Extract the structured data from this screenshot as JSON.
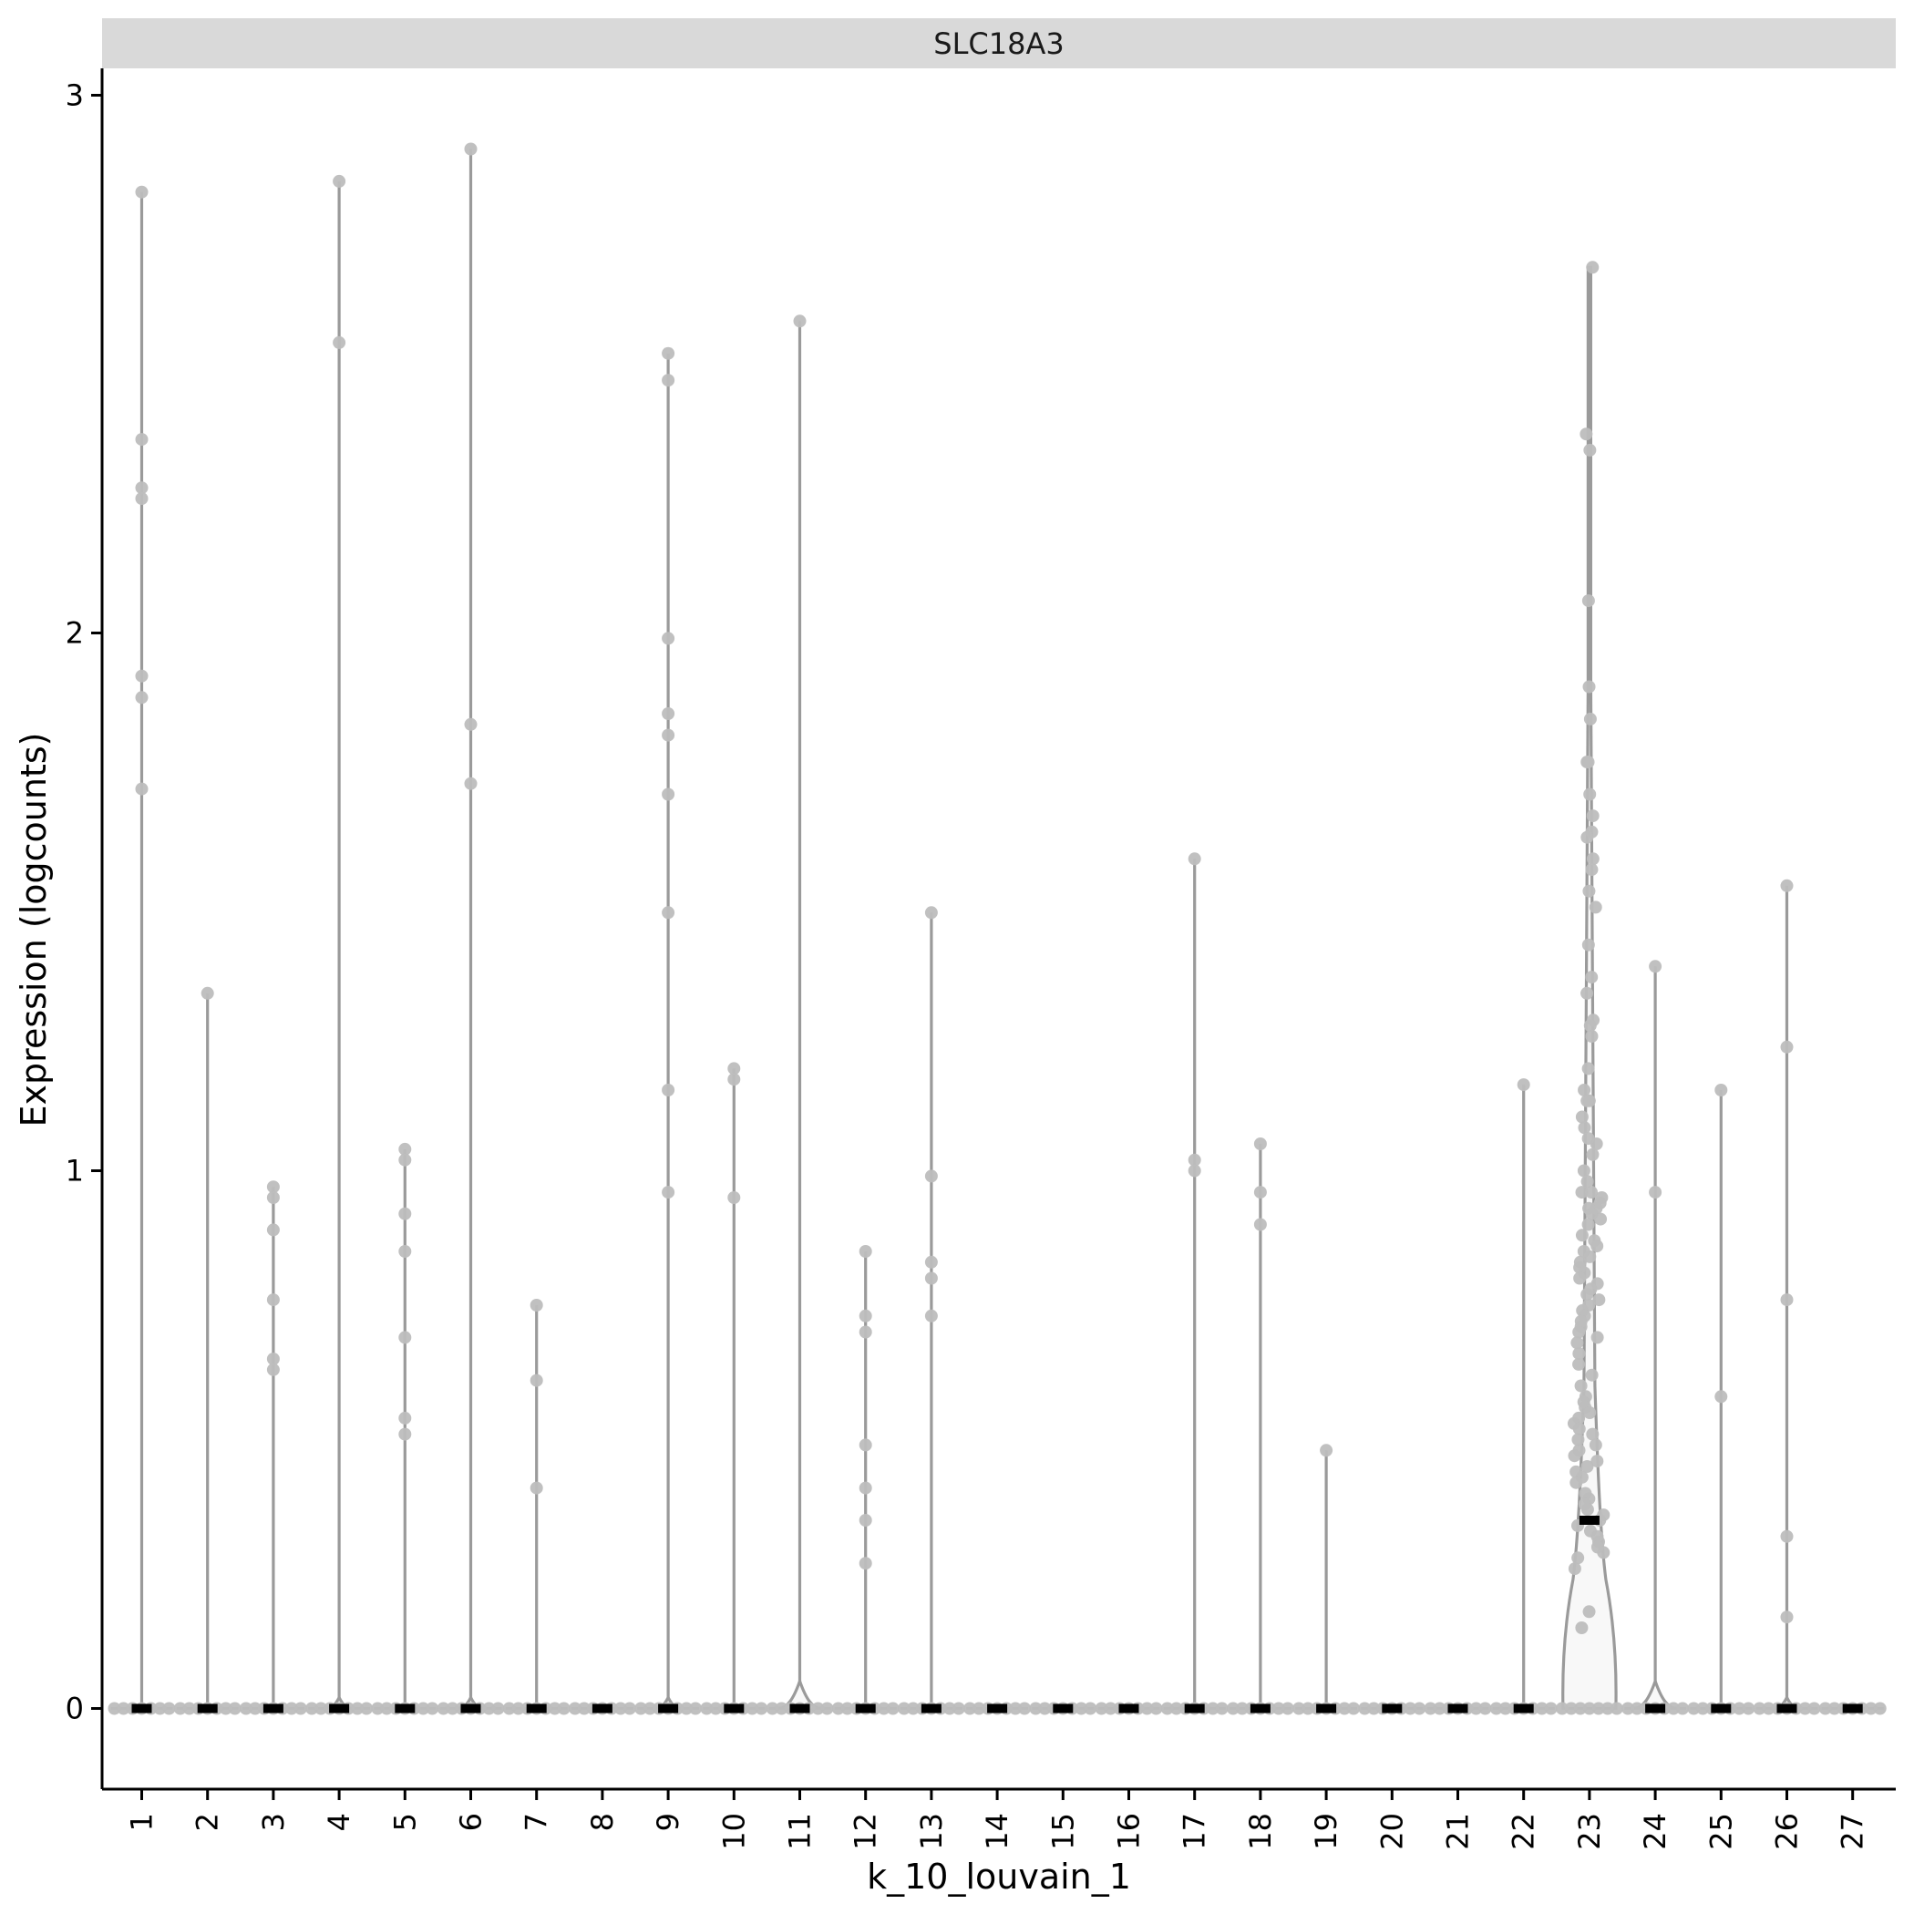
{
  "chart_data": {
    "type": "violin",
    "title": "SLC18A3",
    "xlabel": "k_10_louvain_1",
    "ylabel": "Expression (logcounts)",
    "categories": [
      "1",
      "2",
      "3",
      "4",
      "5",
      "6",
      "7",
      "8",
      "9",
      "10",
      "11",
      "12",
      "13",
      "14",
      "15",
      "16",
      "17",
      "18",
      "19",
      "20",
      "21",
      "22",
      "23",
      "24",
      "25",
      "26",
      "27"
    ],
    "ylim": [
      -0.15,
      3.05
    ],
    "yticks": [
      0,
      1,
      2,
      3
    ],
    "grid": false,
    "legend": "none",
    "colors": {
      "strip": "#d9d9d9",
      "violin_outline": "#9a9a9a",
      "violin_fill": "#f8f8f8",
      "points": "#bdbdbd",
      "median": "#000000"
    },
    "groups": [
      {
        "category": "1",
        "median": 0,
        "max": 2.82,
        "nonzero_points": [
          2.82,
          2.36,
          2.27,
          2.25,
          1.92,
          1.88,
          1.71
        ]
      },
      {
        "category": "2",
        "median": 0,
        "max": 1.33,
        "nonzero_points": [
          1.33
        ]
      },
      {
        "category": "3",
        "median": 0,
        "max": 0.97,
        "nonzero_points": [
          0.97,
          0.95,
          0.89,
          0.76,
          0.65,
          0.63
        ]
      },
      {
        "category": "4",
        "median": 0,
        "max": 2.84,
        "nonzero_points": [
          2.84,
          2.54
        ]
      },
      {
        "category": "5",
        "median": 0,
        "max": 1.04,
        "nonzero_points": [
          1.04,
          1.02,
          0.92,
          0.85,
          0.69,
          0.54,
          0.51
        ]
      },
      {
        "category": "6",
        "median": 0,
        "max": 2.9,
        "nonzero_points": [
          2.9,
          1.83,
          1.72
        ]
      },
      {
        "category": "7",
        "median": 0,
        "max": 0.75,
        "nonzero_points": [
          0.75,
          0.61,
          0.41
        ]
      },
      {
        "category": "8",
        "median": 0,
        "max": 0,
        "nonzero_points": []
      },
      {
        "category": "9",
        "median": 0,
        "max": 2.52,
        "nonzero_points": [
          2.52,
          2.47,
          1.99,
          1.85,
          1.81,
          1.7,
          1.48,
          1.15,
          0.96
        ]
      },
      {
        "category": "10",
        "median": 0,
        "max": 1.19,
        "nonzero_points": [
          1.19,
          1.17,
          0.95
        ]
      },
      {
        "category": "11",
        "median": 0,
        "max": 2.58,
        "nonzero_points": [
          2.58
        ]
      },
      {
        "category": "12",
        "median": 0,
        "max": 0.85,
        "nonzero_points": [
          0.85,
          0.73,
          0.7,
          0.49,
          0.41,
          0.35,
          0.27
        ]
      },
      {
        "category": "13",
        "median": 0,
        "max": 1.48,
        "nonzero_points": [
          1.48,
          0.99,
          0.83,
          0.8,
          0.73
        ]
      },
      {
        "category": "14",
        "median": 0,
        "max": 0,
        "nonzero_points": []
      },
      {
        "category": "15",
        "median": 0,
        "max": 0,
        "nonzero_points": []
      },
      {
        "category": "16",
        "median": 0,
        "max": 0,
        "nonzero_points": []
      },
      {
        "category": "17",
        "median": 0,
        "max": 1.58,
        "nonzero_points": [
          1.58,
          1.02,
          1.0
        ]
      },
      {
        "category": "18",
        "median": 0,
        "max": 1.05,
        "nonzero_points": [
          1.05,
          0.96,
          0.9
        ]
      },
      {
        "category": "19",
        "median": 0,
        "max": 0.48,
        "nonzero_points": [
          0.48
        ]
      },
      {
        "category": "20",
        "median": 0,
        "max": 0,
        "nonzero_points": []
      },
      {
        "category": "21",
        "median": 0,
        "max": 0,
        "nonzero_points": []
      },
      {
        "category": "22",
        "median": 0,
        "max": 1.16,
        "nonzero_points": [
          1.16
        ]
      },
      {
        "category": "23",
        "median": 0.35,
        "max": 2.68,
        "nonzero_points": [
          2.68,
          2.37,
          2.34,
          2.06,
          1.9,
          1.84,
          1.76,
          1.76,
          1.7,
          1.66,
          1.63,
          1.62,
          1.58,
          1.56,
          1.52,
          1.49,
          1.42,
          1.36,
          1.33,
          1.28,
          1.27,
          1.25,
          1.19,
          1.15,
          1.13,
          1.13,
          1.1,
          1.08,
          1.06,
          1.05,
          1.03,
          1.0,
          0.98,
          0.96,
          0.96,
          0.95,
          0.94,
          0.93,
          0.93,
          0.92,
          0.91,
          0.9,
          0.88,
          0.87,
          0.86,
          0.85,
          0.84,
          0.83,
          0.82,
          0.81,
          0.8,
          0.79,
          0.78,
          0.77,
          0.76,
          0.75,
          0.74,
          0.73,
          0.72,
          0.71,
          0.7,
          0.69,
          0.68,
          0.66,
          0.64,
          0.62,
          0.6,
          0.58,
          0.57,
          0.56,
          0.55,
          0.54,
          0.53,
          0.52,
          0.51,
          0.5,
          0.49,
          0.48,
          0.47,
          0.46,
          0.45,
          0.44,
          0.43,
          0.42,
          0.4,
          0.39,
          0.38,
          0.37,
          0.36,
          0.35,
          0.34,
          0.33,
          0.32,
          0.31,
          0.3,
          0.29,
          0.28,
          0.26,
          0.18,
          0.15
        ]
      },
      {
        "category": "24",
        "median": 0,
        "max": 1.38,
        "nonzero_points": [
          1.38,
          0.96
        ]
      },
      {
        "category": "25",
        "median": 0,
        "max": 1.15,
        "nonzero_points": [
          1.15,
          0.58
        ]
      },
      {
        "category": "26",
        "median": 0,
        "max": 1.53,
        "nonzero_points": [
          1.53,
          1.23,
          0.76,
          0.32,
          0.17
        ]
      },
      {
        "category": "27",
        "median": 0,
        "max": 0,
        "nonzero_points": []
      }
    ]
  }
}
